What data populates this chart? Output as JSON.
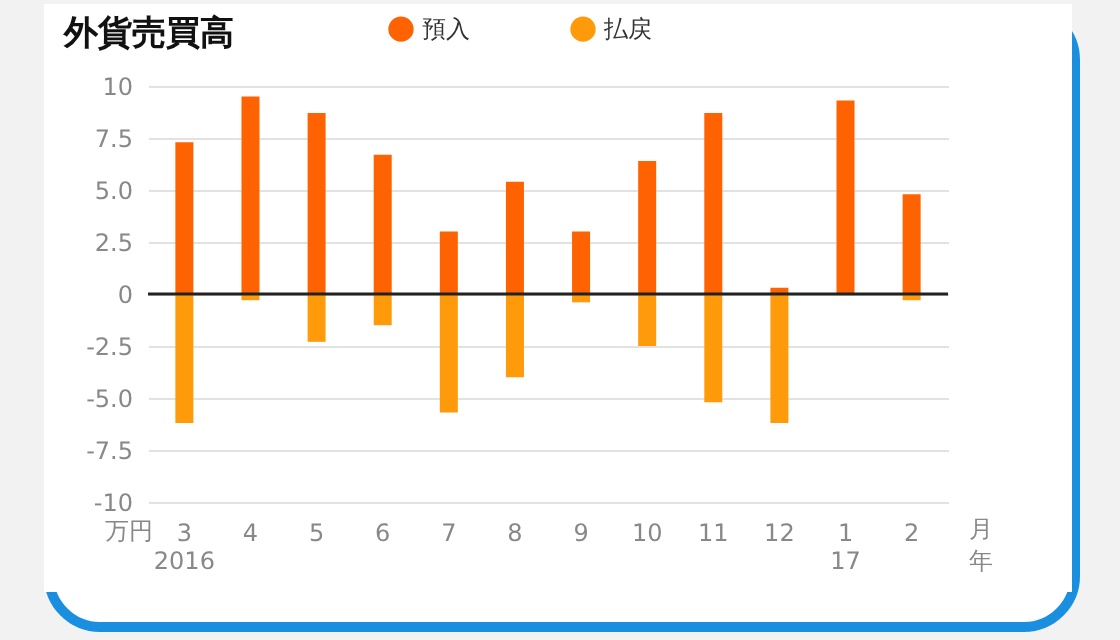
{
  "chart_data": {
    "type": "bar",
    "title": "外貨売買高",
    "xlabel": "月年",
    "ylabel": "万円",
    "categories": [
      "3\n2016",
      "4",
      "5",
      "6",
      "7",
      "8",
      "9",
      "10",
      "11",
      "12",
      "1\n17",
      "2"
    ],
    "series": [
      {
        "name": "預入",
        "color": "#ff6200",
        "values": [
          7.3,
          9.5,
          8.7,
          6.7,
          3.0,
          5.4,
          3.0,
          6.4,
          8.7,
          0.3,
          9.3,
          4.8
        ]
      },
      {
        "name": "払戻",
        "color": "#ff9a0a",
        "values": [
          -6.2,
          -0.3,
          -2.3,
          -1.5,
          -5.7,
          -4.0,
          -0.4,
          -2.5,
          -5.2,
          -6.2,
          0,
          -0.3
        ]
      }
    ],
    "ylim": [
      -10,
      10
    ],
    "yticks": [
      {
        "value": -10,
        "label": "-10"
      },
      {
        "value": -7.5,
        "label": "-7.5"
      },
      {
        "value": -5,
        "label": "-5.0"
      },
      {
        "value": -2.5,
        "label": "-2.5"
      },
      0,
      {
        "value": 2.5,
        "label": "2.5"
      },
      {
        "value": 5,
        "label": "5.0"
      },
      {
        "value": 7.5,
        "label": "7.5"
      },
      10
    ],
    "ref_lines": [
      {
        "axis": "y",
        "value": 0,
        "color": "#222222"
      }
    ],
    "grid": "y",
    "legend": "top",
    "stacked": true
  }
}
